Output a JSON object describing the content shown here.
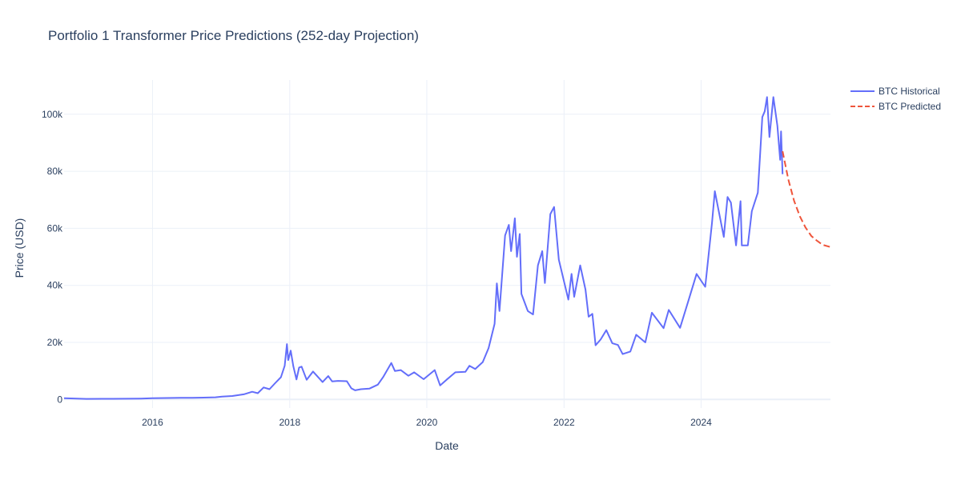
{
  "chart_data": {
    "type": "line",
    "title": "Portfolio 1 Transformer Price Predictions (252-day Projection)",
    "xlabel": "Date",
    "ylabel": "Price (USD)",
    "x_type": "date",
    "xlim": [
      "2014-09-17",
      "2025-11-20"
    ],
    "ylim": [
      -3000,
      112000
    ],
    "x_ticks": [
      {
        "value": "2016-01-01",
        "label": "2016"
      },
      {
        "value": "2018-01-01",
        "label": "2018"
      },
      {
        "value": "2020-01-01",
        "label": "2020"
      },
      {
        "value": "2022-01-01",
        "label": "2022"
      },
      {
        "value": "2024-01-01",
        "label": "2024"
      }
    ],
    "y_ticks": [
      {
        "value": 0,
        "label": "0"
      },
      {
        "value": 20000,
        "label": "20k"
      },
      {
        "value": 40000,
        "label": "40k"
      },
      {
        "value": 60000,
        "label": "60k"
      },
      {
        "value": 80000,
        "label": "80k"
      },
      {
        "value": 100000,
        "label": "100k"
      }
    ],
    "grid": true,
    "legend_position": "top-right",
    "series": [
      {
        "name": "BTC Historical",
        "color": "#636efa",
        "dash": "solid",
        "points": [
          [
            "2014-09-17",
            457
          ],
          [
            "2015-01-15",
            210
          ],
          [
            "2015-06-01",
            230
          ],
          [
            "2015-11-01",
            320
          ],
          [
            "2016-01-01",
            430
          ],
          [
            "2016-06-01",
            580
          ],
          [
            "2016-08-01",
            570
          ],
          [
            "2016-12-01",
            750
          ],
          [
            "2017-01-05",
            1000
          ],
          [
            "2017-03-01",
            1200
          ],
          [
            "2017-05-01",
            1800
          ],
          [
            "2017-06-15",
            2700
          ],
          [
            "2017-07-15",
            2200
          ],
          [
            "2017-08-15",
            4200
          ],
          [
            "2017-09-15",
            3600
          ],
          [
            "2017-10-15",
            5700
          ],
          [
            "2017-11-15",
            7800
          ],
          [
            "2017-12-05",
            11800
          ],
          [
            "2017-12-17",
            19400
          ],
          [
            "2017-12-24",
            13800
          ],
          [
            "2018-01-06",
            17100
          ],
          [
            "2018-01-20",
            11600
          ],
          [
            "2018-02-06",
            7000
          ],
          [
            "2018-02-20",
            11200
          ],
          [
            "2018-03-05",
            11500
          ],
          [
            "2018-04-01",
            6900
          ],
          [
            "2018-05-05",
            9800
          ],
          [
            "2018-06-25",
            6100
          ],
          [
            "2018-07-25",
            8200
          ],
          [
            "2018-08-15",
            6300
          ],
          [
            "2018-09-15",
            6500
          ],
          [
            "2018-11-01",
            6400
          ],
          [
            "2018-11-25",
            3900
          ],
          [
            "2018-12-15",
            3200
          ],
          [
            "2019-01-15",
            3600
          ],
          [
            "2019-03-01",
            3800
          ],
          [
            "2019-04-15",
            5200
          ],
          [
            "2019-05-15",
            8000
          ],
          [
            "2019-06-26",
            12800
          ],
          [
            "2019-07-15",
            10000
          ],
          [
            "2019-08-15",
            10300
          ],
          [
            "2019-09-25",
            8300
          ],
          [
            "2019-10-26",
            9500
          ],
          [
            "2019-12-15",
            7100
          ],
          [
            "2020-02-12",
            10300
          ],
          [
            "2020-03-12",
            4900
          ],
          [
            "2020-04-15",
            6900
          ],
          [
            "2020-06-01",
            9500
          ],
          [
            "2020-07-25",
            9700
          ],
          [
            "2020-08-15",
            11800
          ],
          [
            "2020-09-15",
            10700
          ],
          [
            "2020-10-25",
            13100
          ],
          [
            "2020-11-25",
            18000
          ],
          [
            "2020-12-27",
            26500
          ],
          [
            "2021-01-08",
            40700
          ],
          [
            "2021-01-22",
            31000
          ],
          [
            "2021-02-21",
            57500
          ],
          [
            "2021-03-13",
            61200
          ],
          [
            "2021-03-25",
            52000
          ],
          [
            "2021-04-14",
            63500
          ],
          [
            "2021-04-25",
            50000
          ],
          [
            "2021-05-10",
            58000
          ],
          [
            "2021-05-19",
            37000
          ],
          [
            "2021-06-22",
            31000
          ],
          [
            "2021-07-20",
            29800
          ],
          [
            "2021-08-15",
            47000
          ],
          [
            "2021-09-07",
            52000
          ],
          [
            "2021-09-21",
            40800
          ],
          [
            "2021-10-20",
            65000
          ],
          [
            "2021-11-09",
            67500
          ],
          [
            "2021-12-04",
            49000
          ],
          [
            "2022-01-24",
            35000
          ],
          [
            "2022-02-10",
            44000
          ],
          [
            "2022-02-24",
            36000
          ],
          [
            "2022-03-28",
            47000
          ],
          [
            "2022-04-25",
            38500
          ],
          [
            "2022-05-12",
            29000
          ],
          [
            "2022-06-01",
            30000
          ],
          [
            "2022-06-18",
            19000
          ],
          [
            "2022-07-15",
            21000
          ],
          [
            "2022-08-14",
            24300
          ],
          [
            "2022-09-15",
            19700
          ],
          [
            "2022-10-15",
            19100
          ],
          [
            "2022-11-09",
            15900
          ],
          [
            "2022-12-20",
            16800
          ],
          [
            "2023-01-20",
            22700
          ],
          [
            "2023-03-10",
            20000
          ],
          [
            "2023-04-14",
            30400
          ],
          [
            "2023-06-15",
            25000
          ],
          [
            "2023-07-13",
            31400
          ],
          [
            "2023-09-11",
            25100
          ],
          [
            "2023-10-25",
            34500
          ],
          [
            "2023-12-08",
            44000
          ],
          [
            "2024-01-23",
            39500
          ],
          [
            "2024-02-28",
            62000
          ],
          [
            "2024-03-14",
            73000
          ],
          [
            "2024-05-01",
            57000
          ],
          [
            "2024-05-21",
            71000
          ],
          [
            "2024-06-08",
            69000
          ],
          [
            "2024-07-05",
            54000
          ],
          [
            "2024-07-29",
            69500
          ],
          [
            "2024-08-05",
            54000
          ],
          [
            "2024-09-06",
            54000
          ],
          [
            "2024-09-27",
            66000
          ],
          [
            "2024-10-29",
            72500
          ],
          [
            "2024-11-12",
            88000
          ],
          [
            "2024-11-22",
            99000
          ],
          [
            "2024-12-05",
            101000
          ],
          [
            "2024-12-17",
            106000
          ],
          [
            "2024-12-30",
            92000
          ],
          [
            "2025-01-20",
            106000
          ],
          [
            "2025-02-10",
            96000
          ],
          [
            "2025-02-25",
            84000
          ],
          [
            "2025-03-02",
            94000
          ],
          [
            "2025-03-10",
            79000
          ]
        ]
      },
      {
        "name": "BTC Predicted",
        "color": "#ef553b",
        "dash": "dash",
        "points": [
          [
            "2025-03-10",
            87000
          ],
          [
            "2025-04-10",
            77000
          ],
          [
            "2025-05-10",
            69700
          ],
          [
            "2025-06-10",
            64200
          ],
          [
            "2025-07-10",
            60300
          ],
          [
            "2025-08-10",
            57300
          ],
          [
            "2025-09-10",
            55600
          ],
          [
            "2025-10-10",
            54200
          ],
          [
            "2025-11-17",
            53500
          ]
        ]
      }
    ]
  }
}
